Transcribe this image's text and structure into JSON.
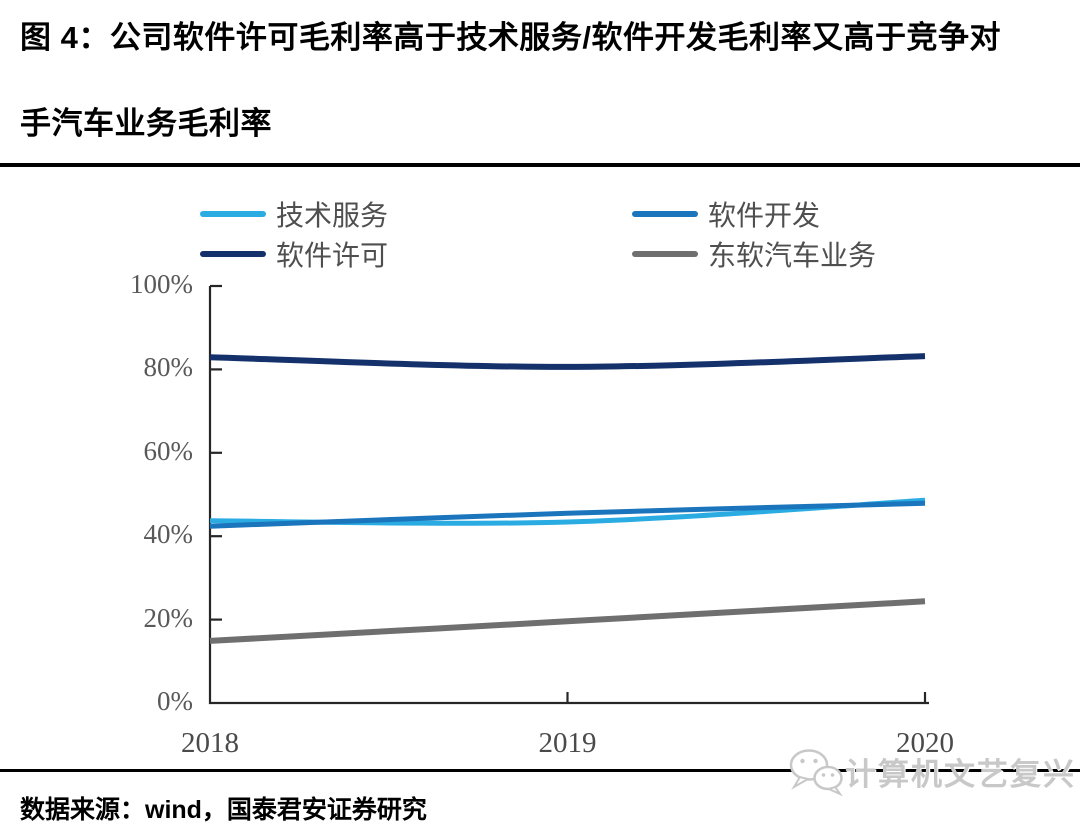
{
  "figure": {
    "title_line1": "图 4：公司软件许可毛利率高于技术服务/软件开发毛利率又高于竞争对",
    "title_line2": "手汽车业务毛利率",
    "source": "数据来源：wind，国泰君安证券研究",
    "watermark": "计算机文艺复兴"
  },
  "chart_data": {
    "type": "line",
    "categories": [
      "2018",
      "2019",
      "2020"
    ],
    "series": [
      {
        "name": "技术服务",
        "color": "#2AACE3",
        "values": [
          43.7,
          43.4,
          48.6
        ]
      },
      {
        "name": "软件开发",
        "color": "#1B75BC",
        "values": [
          42.4,
          45.5,
          47.9
        ]
      },
      {
        "name": "软件许可",
        "color": "#14316B",
        "values": [
          82.9,
          80.6,
          83.2
        ]
      },
      {
        "name": "东软汽车业务",
        "color": "#6F6F6F",
        "values": [
          14.9,
          19.6,
          24.4
        ]
      }
    ],
    "ylim": [
      0,
      100
    ],
    "yticks": [
      "0%",
      "20%",
      "40%",
      "60%",
      "80%",
      "100%"
    ],
    "xlabel": "",
    "ylabel": "",
    "grid": false,
    "smooth": true,
    "legend_position": "top",
    "axis_color": "#262626",
    "tick_label_color": "#595959"
  }
}
